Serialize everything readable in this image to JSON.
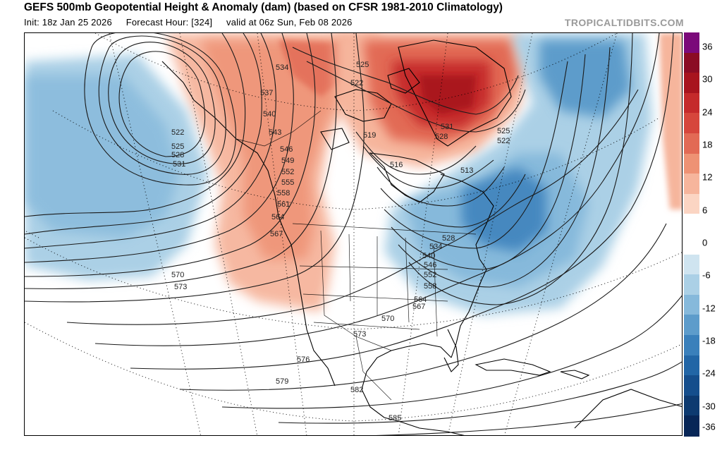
{
  "header": {
    "title": "GEFS 500mb Geopotential Height & Anomaly (dam) (based on CFSR 1981-2010 Climatology)",
    "init": "Init: 18z Jan 25 2026",
    "forecast_hour": "Forecast Hour: [324]",
    "valid": "valid at 06z Sun, Feb 08 2026",
    "credit": "TROPICALTIDBITS.COM"
  },
  "colorbar": {
    "ticks": [
      "36",
      "30",
      "24",
      "18",
      "12",
      "6",
      "0",
      "-6",
      "-12",
      "-18",
      "-24",
      "-30",
      "-36"
    ],
    "colors": [
      "#7b0a7a",
      "#8b0c24",
      "#a8141e",
      "#c52a2b",
      "#d6463c",
      "#e26a55",
      "#ee9274",
      "#f6b59c",
      "#fbd5c3",
      "#ffffff",
      "#ffffff",
      "#cfe4f0",
      "#abd0e6",
      "#86b9db",
      "#5d9ccb",
      "#3a80bb",
      "#2266a6",
      "#154e8c",
      "#0d3a70",
      "#072657"
    ]
  },
  "contour_labels": [
    "534",
    "525",
    "522",
    "537",
    "540",
    "543",
    "546",
    "549",
    "552",
    "555",
    "558",
    "561",
    "564",
    "567",
    "522",
    "525",
    "528",
    "531",
    "570",
    "573",
    "519",
    "516",
    "513",
    "531",
    "528",
    "525",
    "522",
    "528",
    "534",
    "540",
    "546",
    "552",
    "558",
    "564",
    "567",
    "570",
    "573",
    "576",
    "579",
    "582",
    "585"
  ]
}
